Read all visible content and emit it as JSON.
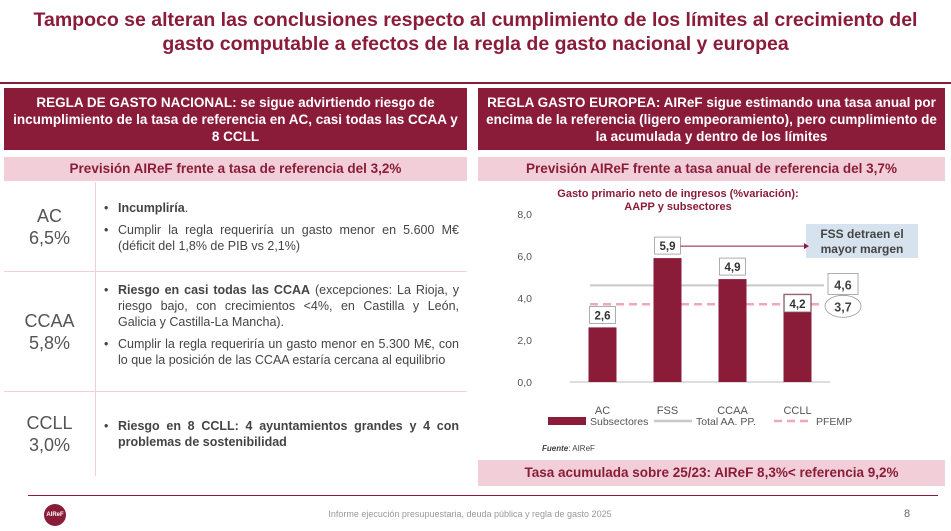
{
  "title": "Tampoco se alteran las conclusiones respecto al cumplimiento de los límites al crecimiento del gasto computable a efectos de la regla de gasto nacional y europea",
  "left": {
    "header": "REGLA DE GASTO NACIONAL: se sigue advirtiendo  riesgo de incumplimiento de la tasa de referencia en AC, casi todas las CCAA y 8 CCLL",
    "subheader": "Previsión AIReF frente a tasa de referencia del 3,2%",
    "rows": [
      {
        "name": "AC",
        "value": "6,5%",
        "b1_bold": "Incumpliría",
        "b1_rest": ".",
        "b2": "Cumplir la regla requeriría un gasto menor en 5.600 M€ (déficit del 1,8% de PIB  vs  2,1%)"
      },
      {
        "name": "CCAA",
        "value": "5,8%",
        "b1_bold": "Riesgo en casi todas las CCAA",
        "b1_rest": " (excepciones: La Rioja, y riesgo bajo, con crecimientos <4%, en Castilla y León, Galicia y Castilla-La Mancha).",
        "b2": "Cumplir la regla requeriría un gasto menor en 5.300 M€, con lo que la posición de las CCAA estaría cercana al equilibrio"
      },
      {
        "name": "CCLL",
        "value": "3,0%",
        "b1_bold": "Riesgo en 8 CCLL: 4 ayuntamientos grandes y 4 con problemas de sostenibilidad",
        "b1_rest": ""
      }
    ]
  },
  "right": {
    "header": "REGLA GASTO EUROPEA: AIReF sigue estimando una tasa anual por encima de la referencia (ligero empeoramiento), pero cumplimiento de la acumulada y dentro de los límites",
    "subheader": "Previsión AIReF frente a tasa anual de referencia del 3,7%",
    "bottom_band": "Tasa acumulada sobre 25/23: AIReF 8,3%< referencia 9,2%",
    "source_label": "Fuente",
    "source_value": ": AIReF"
  },
  "chart_data": {
    "type": "bar",
    "title_line1": "Gasto primario neto de ingresos (%variación):",
    "title_line2": "AAPP y subsectores",
    "categories": [
      "AC",
      "FSS",
      "CCAA",
      "CCLL"
    ],
    "series": [
      {
        "name": "Subsectores",
        "values": [
          2.6,
          5.9,
          4.9,
          4.2
        ],
        "labels": [
          "2,6",
          "5,9",
          "4,9",
          "4,2"
        ]
      },
      {
        "name": "Total AA. PP.",
        "values": [
          4.6,
          4.6,
          4.6,
          4.6
        ],
        "label": "4,6"
      },
      {
        "name": "PFEMP",
        "values": [
          3.7,
          3.7,
          3.7,
          3.7
        ],
        "label": "3,7"
      }
    ],
    "yticks": [
      "8,0",
      "6,0",
      "4,0",
      "2,0",
      "0,0"
    ],
    "ylim": [
      0,
      8
    ],
    "annotation": "FSS detraen el mayor margen",
    "colors": {
      "bar": "#8a1c3a",
      "total": "#c8c8c8",
      "pfemp": "#f0a7b6",
      "annotation_bg": "#d6e3ee"
    }
  },
  "footer": {
    "logo_text": "AIReF",
    "text": "Informe ejecución presupuestaria, deuda pública y regla de gasto 2025",
    "page": "8"
  }
}
